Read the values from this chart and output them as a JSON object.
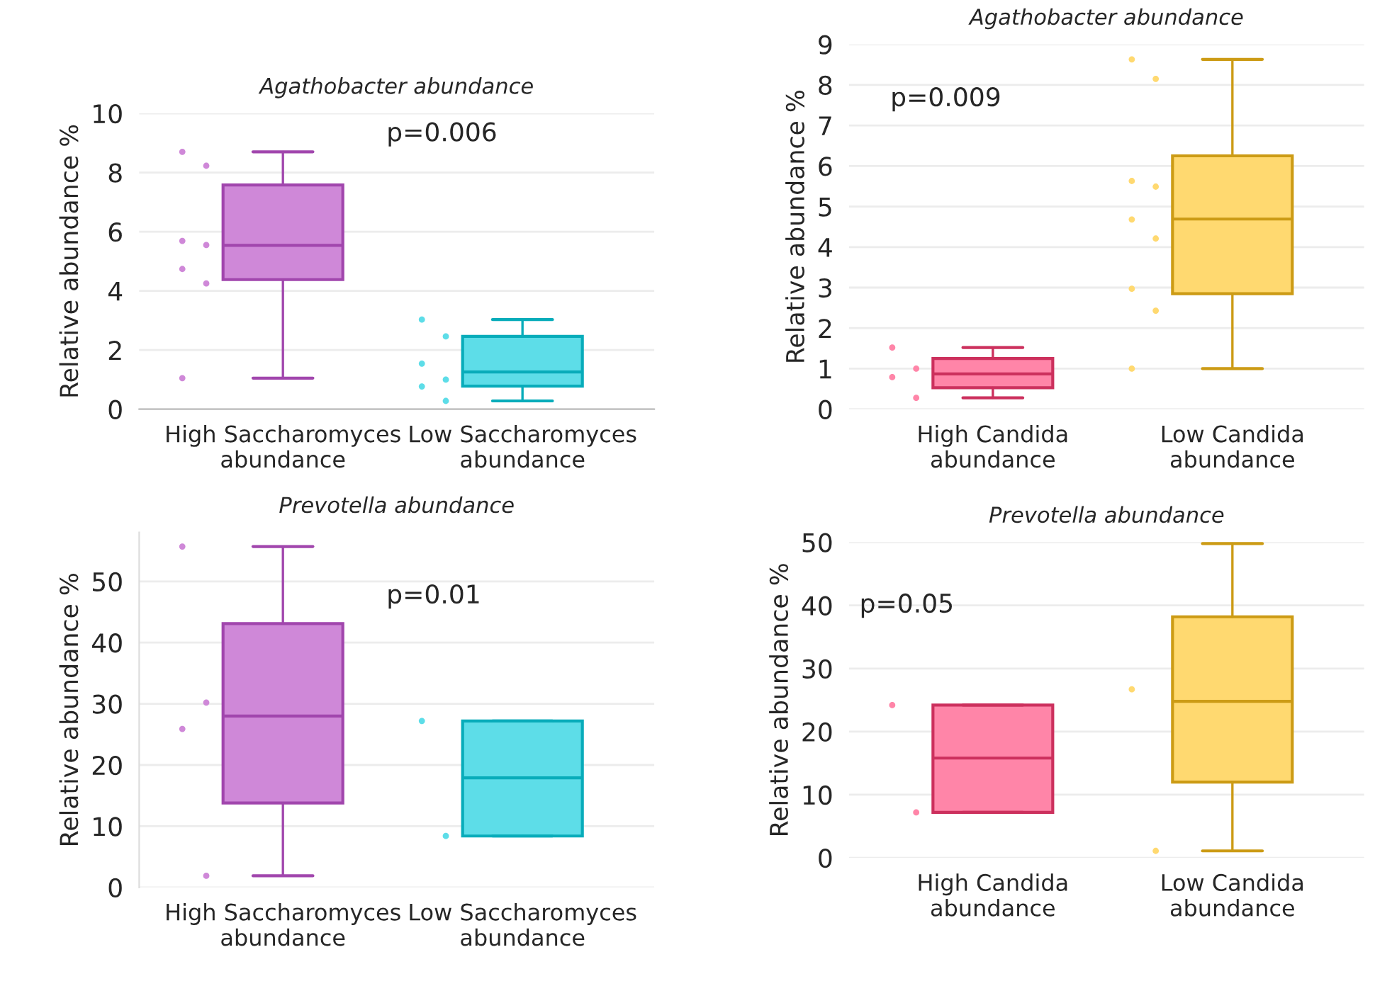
{
  "chart_data": [
    {
      "type": "box",
      "title": "Agathobacter abundance",
      "ylabel": "Relative abundance %",
      "categories": [
        "High Saccharomyces\nabundance",
        "Low Saccharomyces\nabundance"
      ],
      "colors": [
        "#cf88d8",
        "#5ddde8"
      ],
      "boxes": [
        {
          "low": 1.05,
          "q1": 4.38,
          "median": 5.54,
          "q3": 7.58,
          "high": 8.7
        },
        {
          "low": 0.28,
          "q1": 0.78,
          "median": 1.26,
          "q3": 2.46,
          "high": 3.03
        }
      ],
      "series": [
        {
          "type": "scatter",
          "color": "#cf88d8",
          "x": [
            "High Saccharomyces\nabundance",
            "High Saccharomyces\nabundance",
            "High Saccharomyces\nabundance",
            "High Saccharomyces\nabundance",
            "High Saccharomyces\nabundance",
            "High Saccharomyces\nabundance",
            "High Saccharomyces\nabundance"
          ],
          "values": [
            8.7,
            8.23,
            5.69,
            5.55,
            4.74,
            4.25,
            1.05
          ]
        },
        {
          "type": "scatter",
          "color": "#5ddde8",
          "x": [
            "Low Saccharomyces\nabundance",
            "Low Saccharomyces\nabundance",
            "Low Saccharomyces\nabundance",
            "Low Saccharomyces\nabundance",
            "Low Saccharomyces\nabundance",
            "Low Saccharomyces\nabundance"
          ],
          "values": [
            3.03,
            2.46,
            1.54,
            1.0,
            0.77,
            0.28
          ]
        }
      ],
      "ylim": [
        0,
        10
      ],
      "yticks": [
        0,
        2,
        4,
        6,
        8,
        10
      ],
      "grid": "y",
      "annotations": [
        "p=0.006"
      ]
    },
    {
      "type": "box",
      "title": "Agathobacter abundance",
      "ylabel": "Relative abundance %",
      "categories": [
        "High Candida\nabundance",
        "Low Candida\nabundance"
      ],
      "colors": [
        "#ff85a8",
        "#ffd970"
      ],
      "boxes": [
        {
          "low": 0.28,
          "q1": 0.53,
          "median": 0.87,
          "q3": 1.25,
          "high": 1.52
        },
        {
          "low": 1.0,
          "q1": 2.85,
          "median": 4.69,
          "q3": 6.25,
          "high": 8.63
        }
      ],
      "series": [
        {
          "type": "scatter",
          "color": "#ff85a8",
          "x": [
            "High Candida\nabundance",
            "High Candida\nabundance",
            "High Candida\nabundance",
            "High Candida\nabundance"
          ],
          "values": [
            1.52,
            1.0,
            0.79,
            0.28
          ]
        },
        {
          "type": "scatter",
          "color": "#ffd970",
          "x": [
            "Low Candida\nabundance",
            "Low Candida\nabundance",
            "Low Candida\nabundance",
            "Low Candida\nabundance",
            "Low Candida\nabundance",
            "Low Candida\nabundance",
            "Low Candida\nabundance",
            "Low Candida\nabundance",
            "Low Candida\nabundance"
          ],
          "values": [
            8.63,
            8.15,
            5.63,
            5.49,
            4.68,
            4.21,
            2.97,
            2.43,
            1.0
          ]
        }
      ],
      "ylim": [
        0,
        9
      ],
      "yticks": [
        0,
        1,
        2,
        3,
        4,
        5,
        6,
        7,
        8,
        9
      ],
      "grid": "y",
      "annotations": [
        "p=0.009"
      ]
    },
    {
      "type": "box",
      "title": "Prevotella abundance",
      "ylabel": "Relative abundance %",
      "categories": [
        "High Saccharomyces\nabundance",
        "Low Saccharomyces\nabundance"
      ],
      "colors": [
        "#cf88d8",
        "#5ddde8"
      ],
      "boxes": [
        {
          "low": 1.9,
          "q1": 13.8,
          "median": 28.0,
          "q3": 43.1,
          "high": 55.7
        },
        {
          "low": 8.4,
          "q1": 8.4,
          "median": 17.9,
          "q3": 27.2,
          "high": 27.2
        }
      ],
      "series": [
        {
          "type": "scatter",
          "color": "#cf88d8",
          "x": [
            "High Saccharomyces\nabundance",
            "High Saccharomyces\nabundance",
            "High Saccharomyces\nabundance",
            "High Saccharomyces\nabundance"
          ],
          "values": [
            55.7,
            30.2,
            25.9,
            1.9
          ]
        },
        {
          "type": "scatter",
          "color": "#5ddde8",
          "x": [
            "Low Saccharomyces\nabundance",
            "Low Saccharomyces\nabundance"
          ],
          "values": [
            27.2,
            8.4
          ]
        }
      ],
      "ylim": [
        0,
        58
      ],
      "yticks": [
        0,
        10,
        20,
        30,
        40,
        50
      ],
      "grid": "y",
      "annotations": [
        "p=0.01"
      ]
    },
    {
      "type": "box",
      "title": "Prevotella abundance",
      "ylabel": "Relative abundance %",
      "categories": [
        "High Candida\nabundance",
        "Low Candida\nabundance"
      ],
      "colors": [
        "#ff85a8",
        "#ffd970"
      ],
      "boxes": [
        {
          "low": 7.2,
          "q1": 7.2,
          "median": 15.8,
          "q3": 24.2,
          "high": 24.2
        },
        {
          "low": 1.1,
          "q1": 12.0,
          "median": 24.8,
          "q3": 38.2,
          "high": 49.8
        }
      ],
      "series": [
        {
          "type": "scatter",
          "color": "#ff85a8",
          "x": [
            "High Candida\nabundance",
            "High Candida\nabundance"
          ],
          "values": [
            24.2,
            7.2
          ]
        },
        {
          "type": "scatter",
          "color": "#ffd970",
          "x": [
            "Low Candida\nabundance",
            "Low Candida\nabundance"
          ],
          "values": [
            26.7,
            1.1
          ]
        }
      ],
      "ylim": [
        0,
        50
      ],
      "yticks": [
        0,
        10,
        20,
        30,
        40,
        50
      ],
      "grid": "y",
      "annotations": [
        "p=0.05"
      ]
    }
  ]
}
